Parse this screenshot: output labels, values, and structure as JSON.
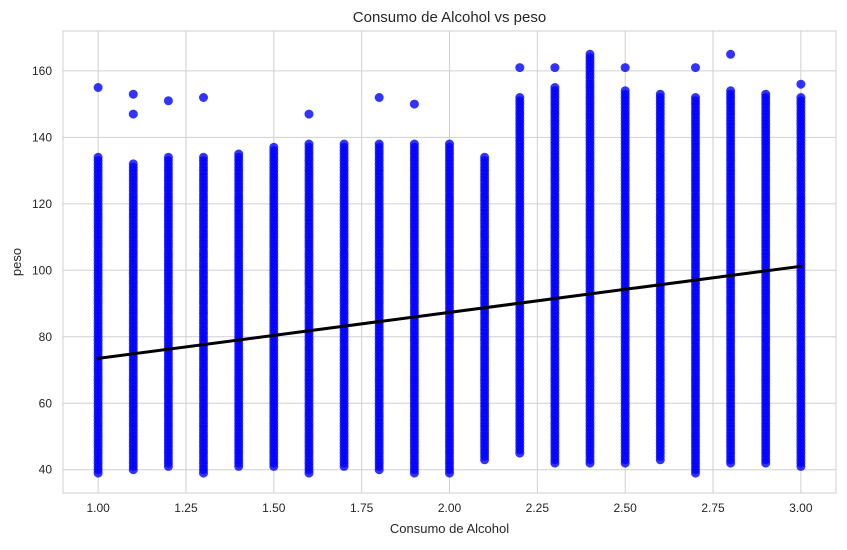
{
  "chart_data": {
    "type": "scatter",
    "title": "Consumo de Alcohol vs peso",
    "xlabel": "Consumo de Alcohol",
    "ylabel": "peso",
    "xlim": [
      0.9,
      3.1
    ],
    "ylim": [
      33,
      172
    ],
    "xticks": [
      1.0,
      1.25,
      1.5,
      1.75,
      2.0,
      2.25,
      2.5,
      2.75,
      3.0
    ],
    "xtick_labels": [
      "1.00",
      "1.25",
      "1.50",
      "1.75",
      "2.00",
      "2.25",
      "2.50",
      "2.75",
      "3.00"
    ],
    "yticks": [
      40,
      60,
      80,
      100,
      120,
      140,
      160
    ],
    "ytick_labels": [
      "40",
      "60",
      "80",
      "100",
      "120",
      "140",
      "160"
    ],
    "grid": true,
    "point_color": "#0000ff",
    "line_color": "#000000",
    "regression_line": {
      "x": [
        1.0,
        3.0
      ],
      "y": [
        73.5,
        101.2
      ]
    },
    "columns": [
      {
        "x": 1.0,
        "min": 39,
        "max": 134,
        "outliers": [
          155
        ]
      },
      {
        "x": 1.1,
        "min": 40,
        "max": 132,
        "outliers": [
          147,
          153
        ]
      },
      {
        "x": 1.2,
        "min": 41,
        "max": 134,
        "outliers": [
          151
        ]
      },
      {
        "x": 1.3,
        "min": 39,
        "max": 134,
        "outliers": [
          152
        ]
      },
      {
        "x": 1.4,
        "min": 41,
        "max": 135,
        "outliers": []
      },
      {
        "x": 1.5,
        "min": 41,
        "max": 137,
        "outliers": []
      },
      {
        "x": 1.6,
        "min": 39,
        "max": 138,
        "outliers": [
          147
        ]
      },
      {
        "x": 1.7,
        "min": 41,
        "max": 138,
        "outliers": []
      },
      {
        "x": 1.8,
        "min": 40,
        "max": 138,
        "outliers": [
          152
        ]
      },
      {
        "x": 1.9,
        "min": 39,
        "max": 138,
        "outliers": [
          150
        ]
      },
      {
        "x": 2.0,
        "min": 39,
        "max": 138,
        "outliers": []
      },
      {
        "x": 2.1,
        "min": 43,
        "max": 134,
        "outliers": []
      },
      {
        "x": 2.2,
        "min": 45,
        "max": 152,
        "outliers": [
          161
        ]
      },
      {
        "x": 2.3,
        "min": 42,
        "max": 155,
        "outliers": [
          161
        ]
      },
      {
        "x": 2.4,
        "min": 42,
        "max": 165,
        "outliers": []
      },
      {
        "x": 2.5,
        "min": 42,
        "max": 154,
        "outliers": [
          161
        ]
      },
      {
        "x": 2.6,
        "min": 43,
        "max": 153,
        "outliers": []
      },
      {
        "x": 2.7,
        "min": 39,
        "max": 152,
        "outliers": [
          161
        ]
      },
      {
        "x": 2.8,
        "min": 42,
        "max": 154,
        "outliers": [
          165
        ]
      },
      {
        "x": 2.9,
        "min": 42,
        "max": 153,
        "outliers": []
      },
      {
        "x": 3.0,
        "min": 41,
        "max": 152,
        "outliers": [
          156
        ]
      }
    ]
  }
}
